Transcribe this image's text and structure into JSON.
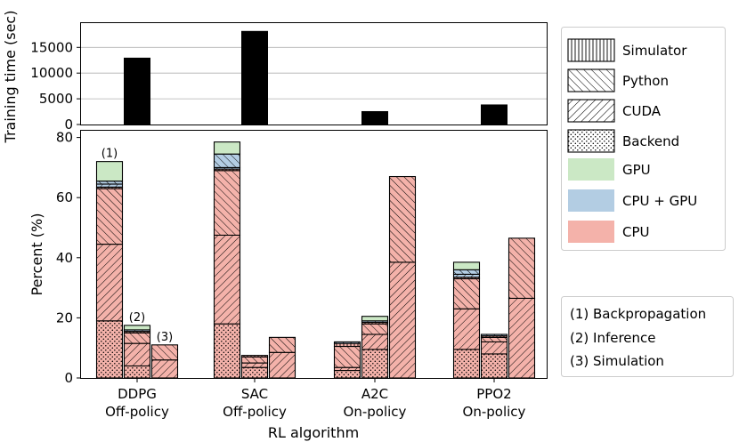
{
  "colors": {
    "cpu": "#f4b2aa",
    "cpu_gpu": "#b3cde3",
    "gpu": "#cbe8c5",
    "edge": "#000000",
    "training_bar": "#000000",
    "grid": "#b0b0b0"
  },
  "chart_data": [
    {
      "type": "bar",
      "title": "",
      "ylabel": "Training time (sec)",
      "ylim": [
        0,
        19000
      ],
      "yticks": [
        "0",
        "5000",
        "10000",
        "15000"
      ],
      "categories": [
        "DDPG",
        "SAC",
        "A2C",
        "PPO2"
      ],
      "values": [
        13000,
        18200,
        2600,
        3900
      ]
    },
    {
      "type": "bar",
      "stacked": true,
      "xlabel": "RL algorithm",
      "ylabel": "Percent (%)",
      "ylim": [
        0,
        80
      ],
      "yticks": [
        "0",
        "20",
        "40",
        "60",
        "80"
      ],
      "categories": [
        {
          "name": "DDPG",
          "policy": "Off-policy"
        },
        {
          "name": "SAC",
          "policy": "Off-policy"
        },
        {
          "name": "A2C",
          "policy": "On-policy"
        },
        {
          "name": "PPO2",
          "policy": "On-policy"
        }
      ],
      "bar_kinds": [
        "(1) Backpropagation",
        "(2) Inference",
        "(3) Simulation"
      ],
      "bar_markers": [
        "(1)",
        "(2)",
        "(3)"
      ],
      "segment_order_bottom_to_top": [
        "CPU Backend",
        "CPU CUDA",
        "CPU Python",
        "CPU Simulator",
        "CPU + GPU CUDA",
        "CPU + GPU Python",
        "GPU"
      ],
      "series": [
        {
          "name": "CPU Backend",
          "values": [
            [
              19,
              4,
              0
            ],
            [
              18,
              3.5,
              0
            ],
            [
              2.5,
              9.5,
              0
            ],
            [
              9.5,
              8,
              0
            ]
          ]
        },
        {
          "name": "CPU CUDA",
          "values": [
            [
              25.5,
              7.5,
              6
            ],
            [
              29.5,
              1.5,
              8.5
            ],
            [
              1,
              5,
              38.5
            ],
            [
              13.5,
              4,
              26.5
            ]
          ]
        },
        {
          "name": "CPU Python",
          "values": [
            [
              18.5,
              3.5,
              5
            ],
            [
              21.5,
              2,
              5
            ],
            [
              7,
              3.5,
              28.5
            ],
            [
              10,
              1.5,
              20
            ]
          ]
        },
        {
          "name": "CPU Simulator",
          "values": [
            [
              0.5,
              0.5,
              0
            ],
            [
              0.5,
              0.5,
              0
            ],
            [
              1,
              0.5,
              0
            ],
            [
              0.5,
              0.5,
              0
            ]
          ]
        },
        {
          "name": "CPU + GPU CUDA",
          "values": [
            [
              1,
              0,
              0
            ],
            [
              0.5,
              0,
              0
            ],
            [
              0,
              0,
              0
            ],
            [
              1,
              0,
              0
            ]
          ]
        },
        {
          "name": "CPU + GPU Python",
          "values": [
            [
              1,
              0.5,
              0
            ],
            [
              4.5,
              0,
              0
            ],
            [
              0.5,
              0.5,
              0
            ],
            [
              1.5,
              0.5,
              0
            ]
          ]
        },
        {
          "name": "GPU",
          "values": [
            [
              6.5,
              1.5,
              0
            ],
            [
              4,
              0,
              0
            ],
            [
              0,
              1.5,
              0
            ],
            [
              2.5,
              0,
              0
            ]
          ]
        }
      ],
      "legend": {
        "placement": "right",
        "hatch_entries": [
          {
            "label": "Simulator",
            "hatch": "vertical"
          },
          {
            "label": "Python",
            "hatch": "backslash"
          },
          {
            "label": "CUDA",
            "hatch": "slash"
          },
          {
            "label": "Backend",
            "hatch": "dots"
          }
        ],
        "color_entries": [
          {
            "label": "GPU",
            "color": "#cbe8c5"
          },
          {
            "label": "CPU + GPU",
            "color": "#b3cde3"
          },
          {
            "label": "CPU",
            "color": "#f4b2aa"
          }
        ]
      },
      "annotations": [
        "(1) Backpropagation",
        "(2) Inference",
        "(3) Simulation"
      ]
    }
  ]
}
